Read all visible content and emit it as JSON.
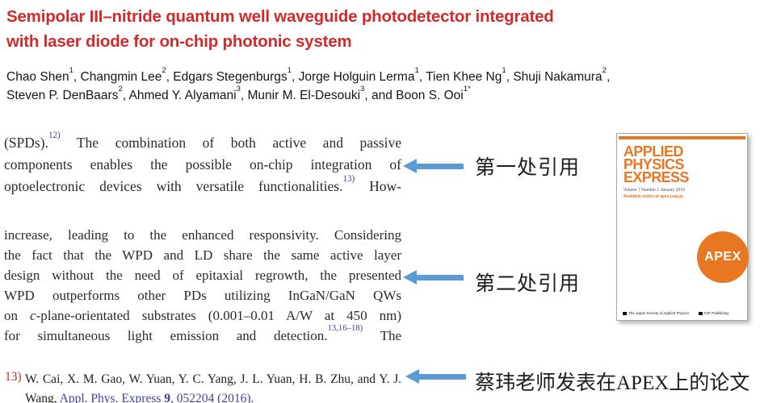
{
  "colors": {
    "title_red": "#d22a2a",
    "citation_blue": "#3f3f9f",
    "arrow_blue": "#5b9bd5",
    "apex_orange": "#e87722"
  },
  "title": {
    "lines": [
      "Semipolar III–nitride quantum well waveguide photodetector integrated",
      "with laser diode for on-chip photonic system"
    ]
  },
  "authors": {
    "lines": [
      "Chao Shen^1^, Changmin Lee^2^, Edgars Stegenburgs^1^, Jorge Holguin Lerma^1^, Tien Khee Ng^1^, Shuji Nakamura^2^,",
      "Steven P. DenBaars^2^, Ahmed Y. Alyamani^3^, Munir M. El-Desouki^3^, and Boon S. Ooi^1*^"
    ]
  },
  "excerpt1": {
    "lines": [
      "(SPDs).^12)^ The combination of both active and passive",
      "components enables the possible on-chip integration of",
      "optoelectronic devices with versatile functionalities.^13)^ How-"
    ]
  },
  "excerpt2": {
    "lines": [
      "increase, leading to the enhanced responsivity. Considering",
      "the fact that the WPD and LD share the same active layer",
      "design without the need of epitaxial regrowth, the presented",
      "WPD outperforms other PDs utilizing InGaN/GaN QWs",
      "on ~c~-plane-orientated substrates (0.001–0.01 A/W at 450 nm)",
      "for simultaneous light emission and detection.^13,16–18)^ The"
    ]
  },
  "annotations": {
    "first": {
      "label": "第一处引用"
    },
    "second": {
      "label": "第二处引用"
    },
    "third": {
      "label": "蔡玮老师发表在APEX上的论文"
    }
  },
  "journal_cover": {
    "masthead": [
      "APPLIED",
      "PHYSICS",
      "EXPRESS"
    ],
    "volume_line": "Volume 7 Number 1 January 2014",
    "online_line": "Available online at apex.jsap.jp",
    "badge": "APEX",
    "footer_left": "The Japan Society of Applied Physics",
    "footer_right": "IOP Publishing"
  },
  "reference": {
    "number": "13)",
    "line1": "W. Cai, X. M. Gao, W. Yuan, Y. C. Yang, J. L. Yuan, H. B. Zhu, and Y. J.",
    "line2_black": "Wang, ",
    "line2_journal": "Appl. Phys. Express ",
    "line2_volume": "9",
    "line2_rest": ", 052204 (2016)."
  }
}
